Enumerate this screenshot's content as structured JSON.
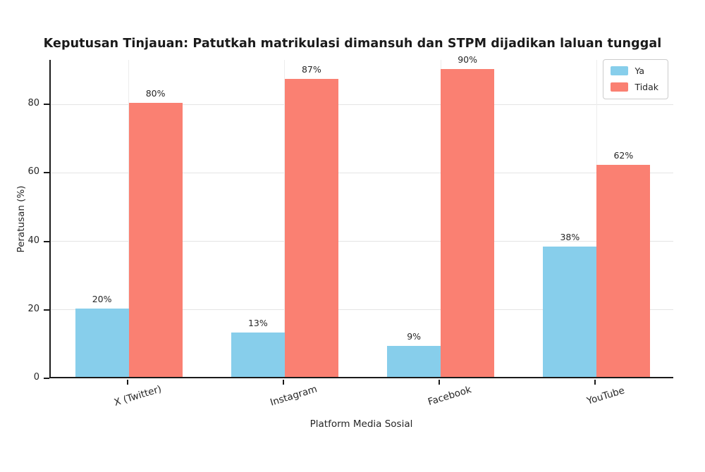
{
  "chart_data": {
    "type": "bar",
    "title": "Keputusan Tinjauan: Patutkah matrikulasi dimansuh dan STPM dijadikan laluan tunggal",
    "xlabel": "Platform Media Sosial",
    "ylabel": "Peratusan (%)",
    "categories": [
      "X (Twitter)",
      "Instagram",
      "Facebook",
      "YouTube"
    ],
    "series": [
      {
        "name": "Ya",
        "color": "#87CEEB",
        "values": [
          20,
          13,
          9,
          38
        ],
        "labels": [
          "20%",
          "13%",
          "9%",
          "38%"
        ]
      },
      {
        "name": "Tidak",
        "color": "#FA8072",
        "values": [
          80,
          87,
          90,
          62
        ],
        "labels": [
          "80%",
          "87%",
          "90%",
          "62%"
        ]
      }
    ],
    "yticks": [
      0,
      20,
      40,
      60,
      80
    ],
    "ylim": [
      0,
      93
    ],
    "grid": true,
    "legend_position": "upper-right"
  },
  "colors": {
    "background": "#ffffff",
    "axis_spine": "#1a1a1a",
    "gridline": "#e4e4e4",
    "text": "#262626"
  }
}
